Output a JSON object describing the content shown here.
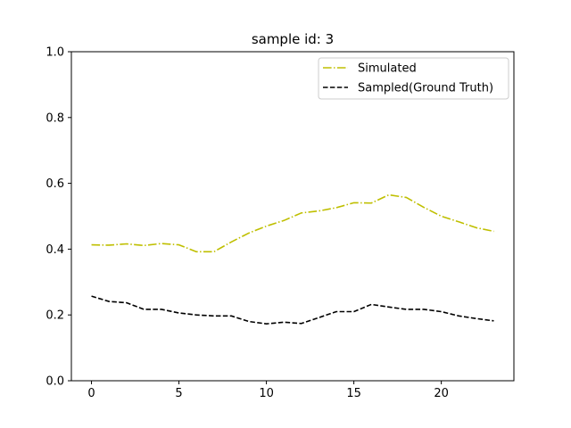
{
  "chart_data": {
    "type": "line",
    "title": "sample id: 3",
    "xlabel": "",
    "ylabel": "",
    "xlim": [
      -1.15,
      24.15
    ],
    "ylim": [
      0.0,
      1.0
    ],
    "x_ticks": [
      0,
      5,
      10,
      15,
      20
    ],
    "x_tick_labels": [
      "0",
      "5",
      "10",
      "15",
      "20"
    ],
    "y_ticks": [
      0.0,
      0.2,
      0.4,
      0.6,
      0.8,
      1.0
    ],
    "y_tick_labels": [
      "0.0",
      "0.2",
      "0.4",
      "0.6",
      "0.8",
      "1.0"
    ],
    "grid": false,
    "legend_position": "top-right",
    "x": [
      0,
      1,
      2,
      3,
      4,
      5,
      6,
      7,
      8,
      9,
      10,
      11,
      12,
      13,
      14,
      15,
      16,
      17,
      18,
      19,
      20,
      21,
      22,
      23
    ],
    "series": [
      {
        "name": "Simulated",
        "color": "#bfbf00",
        "style": "dashdot",
        "values": [
          0.413,
          0.412,
          0.416,
          0.411,
          0.417,
          0.413,
          0.392,
          0.392,
          0.422,
          0.449,
          0.47,
          0.487,
          0.51,
          0.516,
          0.526,
          0.541,
          0.54,
          0.565,
          0.557,
          0.527,
          0.5,
          0.483,
          0.465,
          0.454
        ]
      },
      {
        "name": "Sampled(Ground Truth)",
        "color": "#000000",
        "style": "dashed",
        "values": [
          0.257,
          0.241,
          0.237,
          0.217,
          0.217,
          0.206,
          0.2,
          0.197,
          0.197,
          0.18,
          0.173,
          0.178,
          0.174,
          0.192,
          0.21,
          0.21,
          0.232,
          0.224,
          0.217,
          0.217,
          0.21,
          0.197,
          0.189,
          0.182
        ]
      }
    ]
  }
}
